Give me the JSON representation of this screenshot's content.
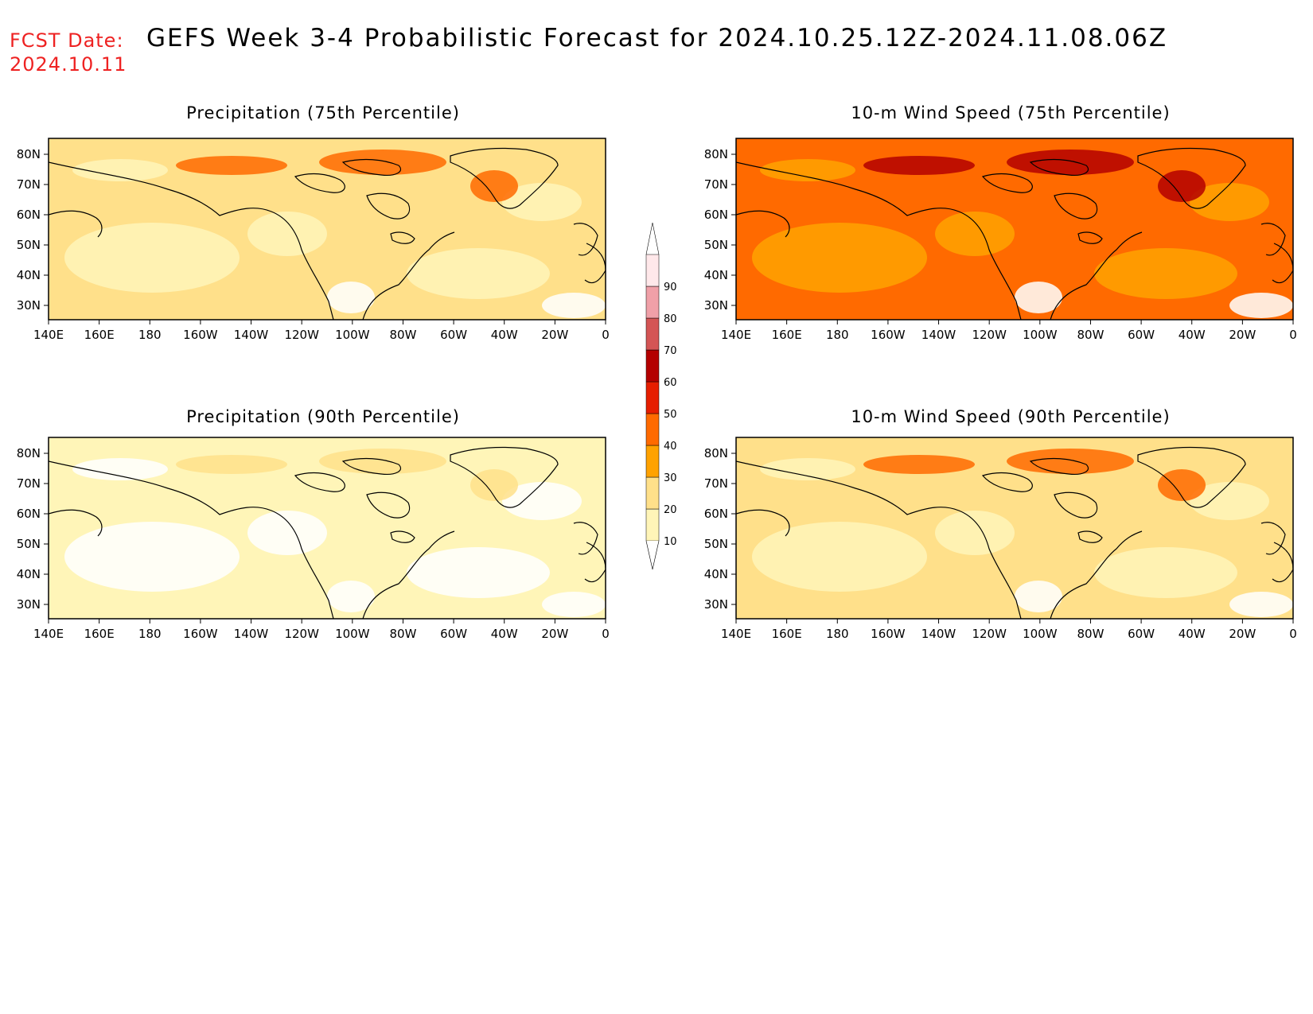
{
  "header": {
    "fcst_label": "FCST Date:",
    "fcst_date": "2024.10.11",
    "title": "GEFS Week 3-4 Probabilistic Forecast for 2024.10.25.12Z-2024.11.08.06Z"
  },
  "axes": {
    "lon_labels": [
      "140E",
      "160E",
      "180",
      "160W",
      "140W",
      "120W",
      "100W",
      "80W",
      "60W",
      "40W",
      "20W",
      "0"
    ],
    "lat_labels": [
      "80N",
      "70N",
      "60N",
      "50N",
      "40N",
      "30N"
    ]
  },
  "panels": [
    {
      "title": "Precipitation (75th Percentile)",
      "base_level": 20,
      "hot_level": 40
    },
    {
      "title": "10-m Wind Speed (75th Percentile)",
      "base_level": 40,
      "hot_level": 60
    },
    {
      "title": "Precipitation (90th Percentile)",
      "base_level": 10,
      "hot_level": 20
    },
    {
      "title": "10-m Wind Speed (90th Percentile)",
      "base_level": 20,
      "hot_level": 40
    }
  ],
  "colorbar": {
    "levels": [
      "10",
      "20",
      "30",
      "40",
      "50",
      "60",
      "70",
      "80",
      "90"
    ],
    "colors": [
      "#fff5b8",
      "#ffe08a",
      "#ffa200",
      "#ff6a00",
      "#e61e00",
      "#b40000",
      "#d45555",
      "#f0a0a8",
      "#ffe8ea"
    ]
  }
}
